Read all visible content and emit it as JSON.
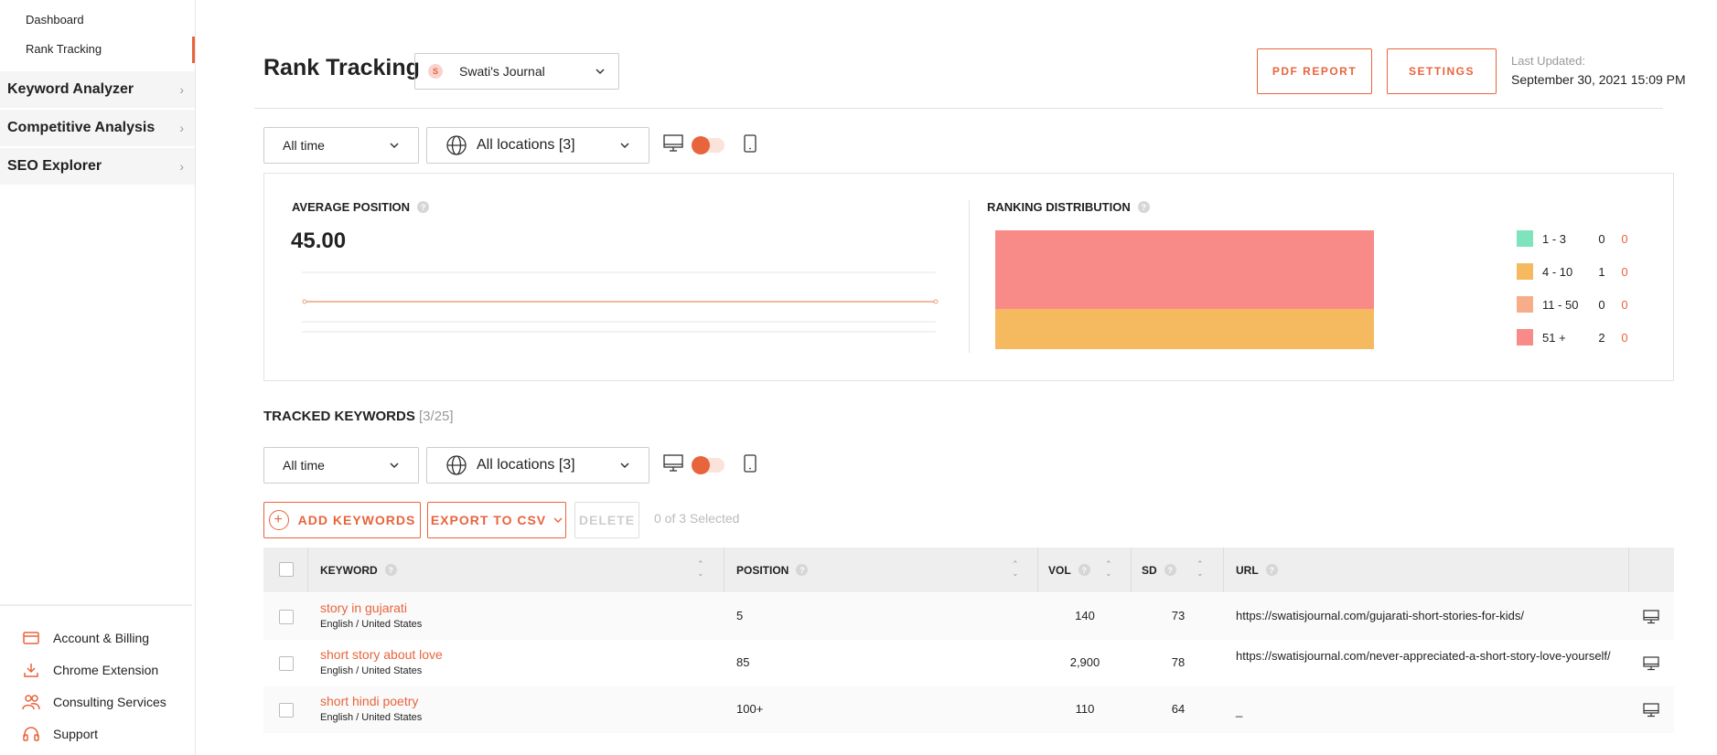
{
  "sidebar": {
    "sub_items": [
      "Dashboard",
      "Rank Tracking"
    ],
    "nav_items": [
      {
        "label": "Keyword Analyzer"
      },
      {
        "label": "Competitive Analysis"
      },
      {
        "label": "SEO Explorer"
      }
    ],
    "bottom_items": [
      {
        "label": "Account & Billing",
        "icon": "credit-card-icon"
      },
      {
        "label": "Chrome Extension",
        "icon": "download-icon"
      },
      {
        "label": "Consulting Services",
        "icon": "users-icon"
      },
      {
        "label": "Support",
        "icon": "headset-icon"
      }
    ]
  },
  "header": {
    "title": "Rank Tracking",
    "site_badge": "S",
    "site_name": "Swati's Journal",
    "pdf_report": "PDF REPORT",
    "settings": "SETTINGS",
    "last_updated_label": "Last Updated:",
    "last_updated_value": "September 30, 2021 15:09 PM"
  },
  "filters": {
    "time": "All time",
    "locations": "All locations [3]"
  },
  "stats": {
    "avg_label": "AVERAGE POSITION",
    "avg_value": "45.00",
    "dist_label": "RANKING DISTRIBUTION",
    "help": "?",
    "distribution": [
      {
        "range": "1 - 3",
        "count": "0",
        "change": "0",
        "color": "#7fe3bc"
      },
      {
        "range": "4 - 10",
        "count": "1",
        "change": "0",
        "color": "#f5b95f"
      },
      {
        "range": "11 - 50",
        "count": "0",
        "change": "0",
        "color": "#f8ad8a"
      },
      {
        "range": "51 +",
        "count": "2",
        "change": "0",
        "color": "#f88a88"
      }
    ]
  },
  "tracked": {
    "title": "TRACKED KEYWORDS",
    "count": "[3/25]",
    "add_keywords": "ADD KEYWORDS",
    "export_csv": "EXPORT TO CSV",
    "delete": "DELETE",
    "selected": "0 of 3 Selected",
    "columns": {
      "keyword": "KEYWORD",
      "position": "POSITION",
      "vol": "VOL",
      "sd": "SD",
      "url": "URL"
    },
    "rows": [
      {
        "keyword": "story in gujarati",
        "locale": "English / United States",
        "position": "5",
        "vol": "140",
        "sd": "73",
        "url": "https://swatisjournal.com/gujarati-short-stories-for-kids/"
      },
      {
        "keyword": "short story about love",
        "locale": "English / United States",
        "position": "85",
        "vol": "2,900",
        "sd": "78",
        "url": "https://swatisjournal.com/never-appreciated-a-short-story-love-yourself/"
      },
      {
        "keyword": "short hindi poetry",
        "locale": "English / United States",
        "position": "100+",
        "vol": "110",
        "sd": "64",
        "url": "_"
      }
    ]
  },
  "colors": {
    "accent": "#e8643c",
    "dist_top": "#f88a88",
    "dist_bottom": "#f5b95f"
  }
}
